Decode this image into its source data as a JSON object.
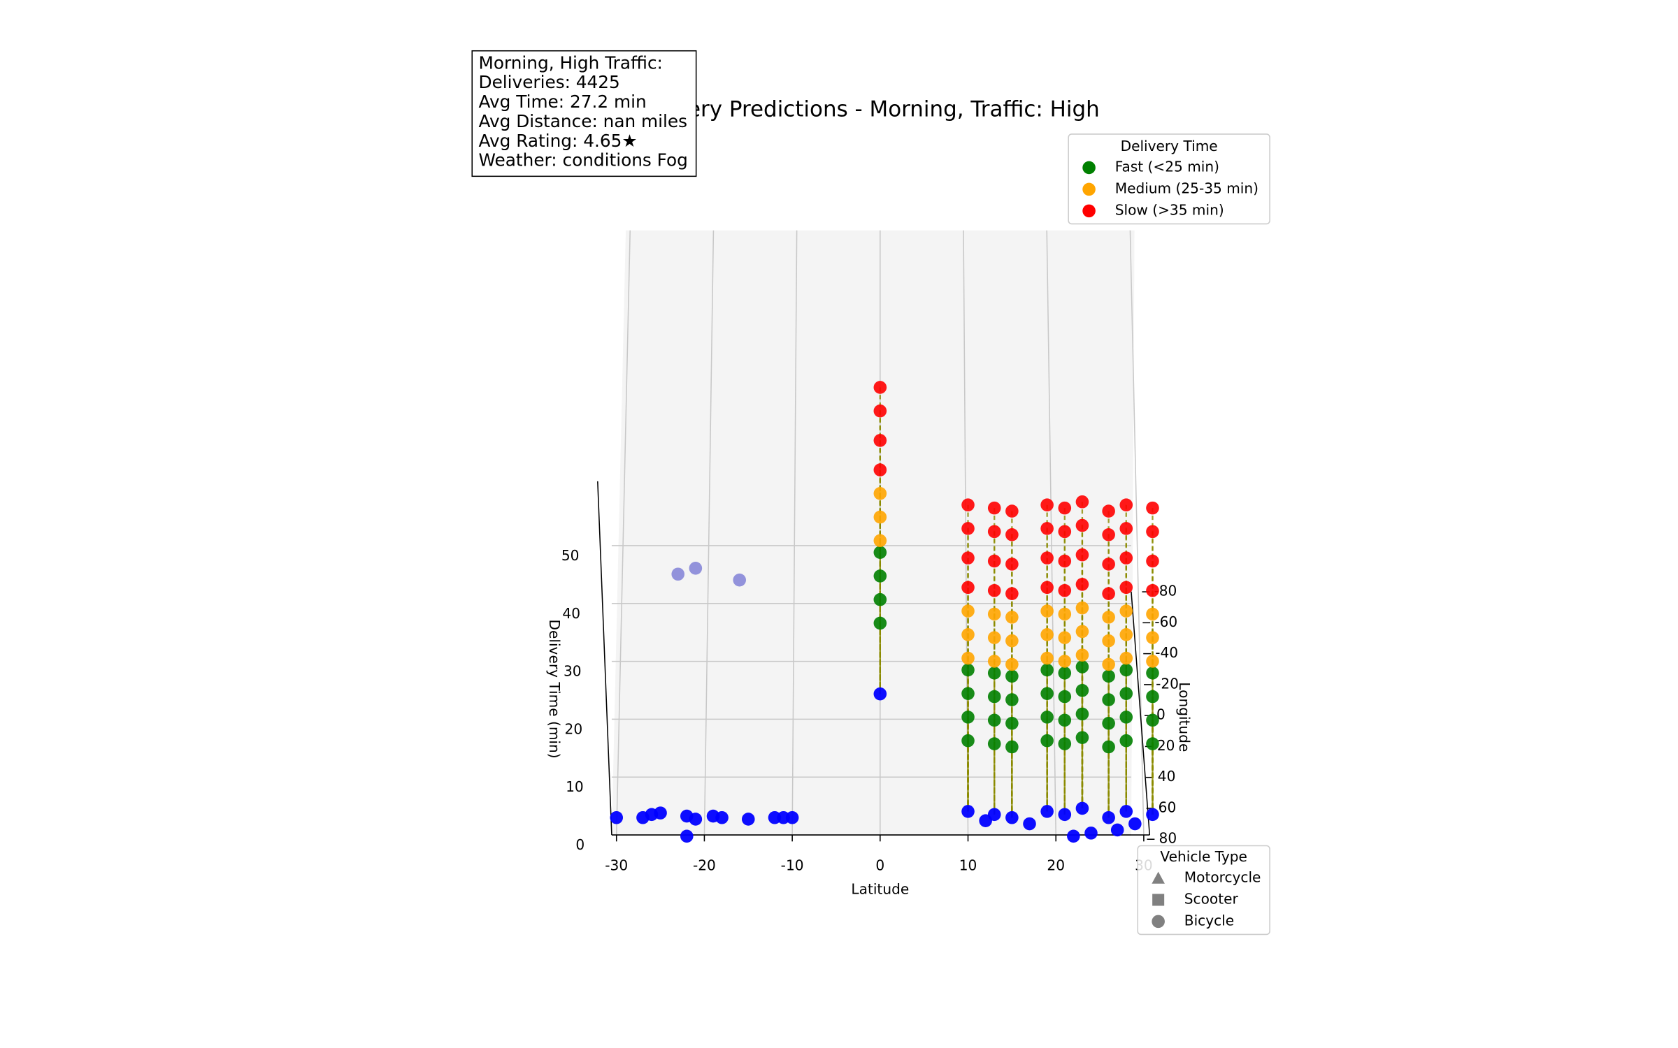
{
  "chart_data": {
    "type": "scatter3d",
    "title": "Delivery Predictions - Morning, Traffic: High",
    "text_box": [
      "Morning, High  Traffic:",
      "Deliveries: 4425",
      "Avg Time: 27.2 min",
      "Avg Distance: nan miles",
      "Avg Rating: 4.65★",
      "Weather: conditions Fog"
    ],
    "x_label": "Latitude",
    "y_label": "Longitude",
    "z_label": "Delivery Time (min)",
    "xlim": [
      -30,
      30
    ],
    "xticks": [
      -30,
      -20,
      -10,
      0,
      10,
      20,
      30
    ],
    "ylim": [
      -80,
      80
    ],
    "yticks": [
      80,
      60,
      40,
      20,
      0,
      -20,
      -40,
      -60,
      -80
    ],
    "zlim": [
      0,
      50
    ],
    "zticks": [
      0,
      10,
      20,
      30,
      40,
      50
    ],
    "grid": true,
    "legend_title": "Delivery Time",
    "legend_position": "upper right",
    "series": [
      {
        "color": "#0000ff",
        "x": [
          0,
          10,
          13,
          15,
          19,
          21,
          23,
          26,
          28,
          31,
          -30,
          -27,
          -26,
          -25,
          -22,
          -22,
          -21,
          -19,
          -18,
          -15,
          -12,
          -11,
          -10,
          22,
          24,
          27,
          29,
          12,
          17
        ],
        "y": [
          -14,
          62,
          64,
          66,
          62,
          64,
          60,
          66,
          62,
          64,
          66,
          66,
          64,
          63,
          78,
          65,
          67,
          65,
          66,
          67,
          66,
          66,
          66,
          78,
          76,
          74,
          70,
          68,
          70
        ],
        "values": [
          0,
          0,
          0,
          0,
          0,
          0,
          0,
          0,
          0,
          0,
          0,
          0,
          0,
          0,
          0,
          0,
          0,
          0,
          0,
          0,
          0,
          0,
          0,
          0,
          0,
          0,
          0,
          0,
          0
        ]
      },
      {
        "color": "#8c8cd9",
        "x": [
          -23,
          -21,
          -16
        ],
        "y": [
          -80,
          -80,
          -80
        ],
        "values": [
          3,
          4,
          2
        ]
      },
      {
        "name": "Fast (<25 min)",
        "color": "#008000",
        "x": [
          0,
          0,
          0,
          0,
          10,
          10,
          10,
          10,
          13,
          13,
          13,
          13,
          15,
          15,
          15,
          15,
          19,
          19,
          19,
          19,
          21,
          21,
          21,
          21,
          23,
          23,
          23,
          23,
          26,
          26,
          26,
          26,
          28,
          28,
          28,
          28,
          31,
          31,
          31,
          31
        ],
        "y": [
          -14,
          -14,
          -14,
          -14,
          62,
          62,
          62,
          62,
          64,
          64,
          64,
          64,
          66,
          66,
          66,
          66,
          62,
          62,
          62,
          62,
          64,
          64,
          64,
          64,
          60,
          60,
          60,
          60,
          66,
          66,
          66,
          66,
          62,
          62,
          62,
          62,
          64,
          64,
          64,
          64
        ],
        "values": [
          12,
          16,
          20,
          24,
          12,
          16,
          20,
          24,
          12,
          16,
          20,
          24,
          12,
          16,
          20,
          24,
          12,
          16,
          20,
          24,
          12,
          16,
          20,
          24,
          12,
          16,
          20,
          24,
          12,
          16,
          20,
          24,
          12,
          16,
          20,
          24,
          12,
          16,
          20,
          24
        ]
      },
      {
        "name": "Medium (25-35 min)",
        "color": "#ffa500",
        "x": [
          0,
          0,
          0,
          10,
          10,
          10,
          13,
          13,
          13,
          15,
          15,
          15,
          19,
          19,
          19,
          21,
          21,
          21,
          23,
          23,
          23,
          26,
          26,
          26,
          28,
          28,
          28,
          31,
          31,
          31
        ],
        "y": [
          -14,
          -14,
          -14,
          62,
          62,
          62,
          64,
          64,
          64,
          66,
          66,
          66,
          62,
          62,
          62,
          64,
          64,
          64,
          60,
          60,
          60,
          66,
          66,
          66,
          62,
          62,
          62,
          64,
          64,
          64
        ],
        "values": [
          26,
          30,
          34,
          26,
          30,
          34,
          26,
          30,
          34,
          26,
          30,
          34,
          26,
          30,
          34,
          26,
          30,
          34,
          26,
          30,
          34,
          26,
          30,
          34,
          26,
          30,
          34,
          26,
          30,
          34
        ]
      },
      {
        "name": "Slow (>35 min)",
        "color": "#ff0000",
        "x": [
          0,
          0,
          0,
          0,
          10,
          10,
          10,
          10,
          13,
          13,
          13,
          13,
          15,
          15,
          15,
          15,
          19,
          19,
          19,
          19,
          21,
          21,
          21,
          21,
          23,
          23,
          23,
          23,
          26,
          26,
          26,
          26,
          28,
          28,
          28,
          28,
          31,
          31,
          31,
          31
        ],
        "y": [
          -14,
          -14,
          -14,
          -14,
          62,
          62,
          62,
          62,
          64,
          64,
          64,
          64,
          66,
          66,
          66,
          66,
          62,
          62,
          62,
          62,
          64,
          64,
          64,
          64,
          60,
          60,
          60,
          60,
          66,
          66,
          66,
          66,
          62,
          62,
          62,
          62,
          64,
          64,
          64,
          64
        ],
        "values": [
          38,
          43,
          48,
          52,
          38,
          43,
          48,
          52,
          38,
          43,
          48,
          52,
          38,
          43,
          48,
          52,
          38,
          43,
          48,
          52,
          38,
          43,
          48,
          52,
          38,
          43,
          48,
          52,
          38,
          43,
          48,
          52,
          38,
          43,
          48,
          52,
          38,
          43,
          48,
          52
        ]
      }
    ],
    "vehicle_legend": {
      "title": "Vehicle Type",
      "position": "lower right",
      "color": "#808080",
      "items": [
        {
          "label": "Motorcycle",
          "marker": "triangle"
        },
        {
          "label": "Scooter",
          "marker": "square"
        },
        {
          "label": "Bicycle",
          "marker": "circle"
        }
      ]
    }
  }
}
